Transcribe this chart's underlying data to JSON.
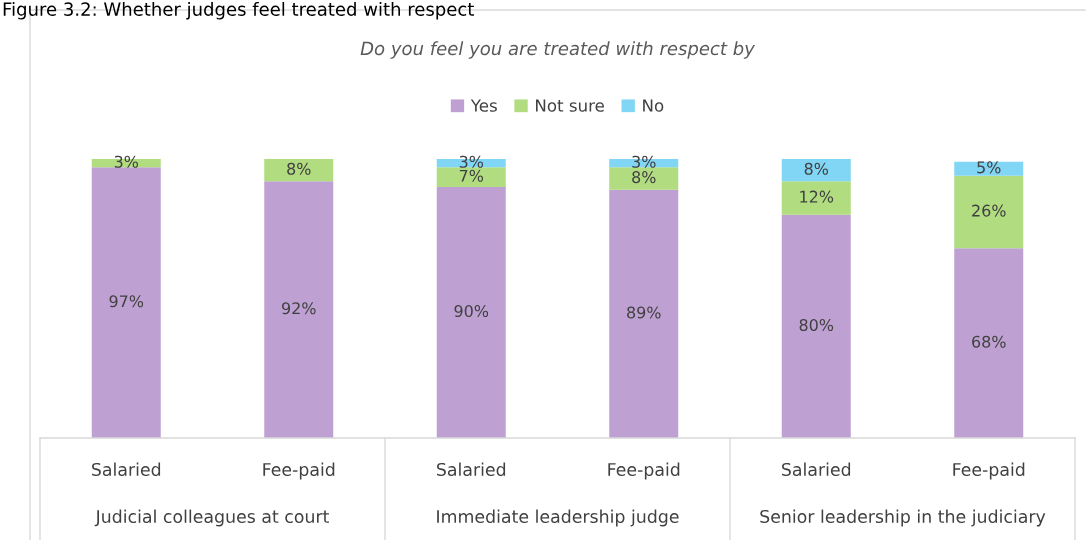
{
  "chart_data": {
    "type": "bar",
    "stacked": true,
    "title": "Do you feel you are treated with respect by",
    "categories": [
      "Salaried",
      "Fee-paid",
      "Salaried",
      "Fee-paid",
      "Salaried",
      "Fee-paid"
    ],
    "series": [
      {
        "name": "Yes",
        "color": "#bea1d2",
        "values": [
          97,
          92,
          90,
          89,
          80,
          68
        ],
        "value_labels": [
          "97%",
          "92%",
          "90%",
          "89%",
          "80%",
          "68%"
        ]
      },
      {
        "name": "Not sure",
        "color": "#b1dc80",
        "values": [
          3,
          8,
          7,
          8,
          12,
          26
        ],
        "value_labels": [
          "3%",
          "8%",
          "7%",
          "8%",
          "12%",
          "26%"
        ]
      },
      {
        "name": "No",
        "color": "#81d6f5",
        "values": [
          null,
          null,
          3,
          3,
          8,
          5
        ],
        "value_labels": [
          null,
          null,
          "3%",
          "3%",
          "8%",
          "5%"
        ]
      }
    ],
    "legend": "top",
    "grid": false,
    "annotations": [
      "Figure 3.2: Whether judges feel treated with respect",
      "Judicial colleagues at court",
      "Immediate leadership judge",
      "Senior leadership in the judiciary"
    ]
  }
}
